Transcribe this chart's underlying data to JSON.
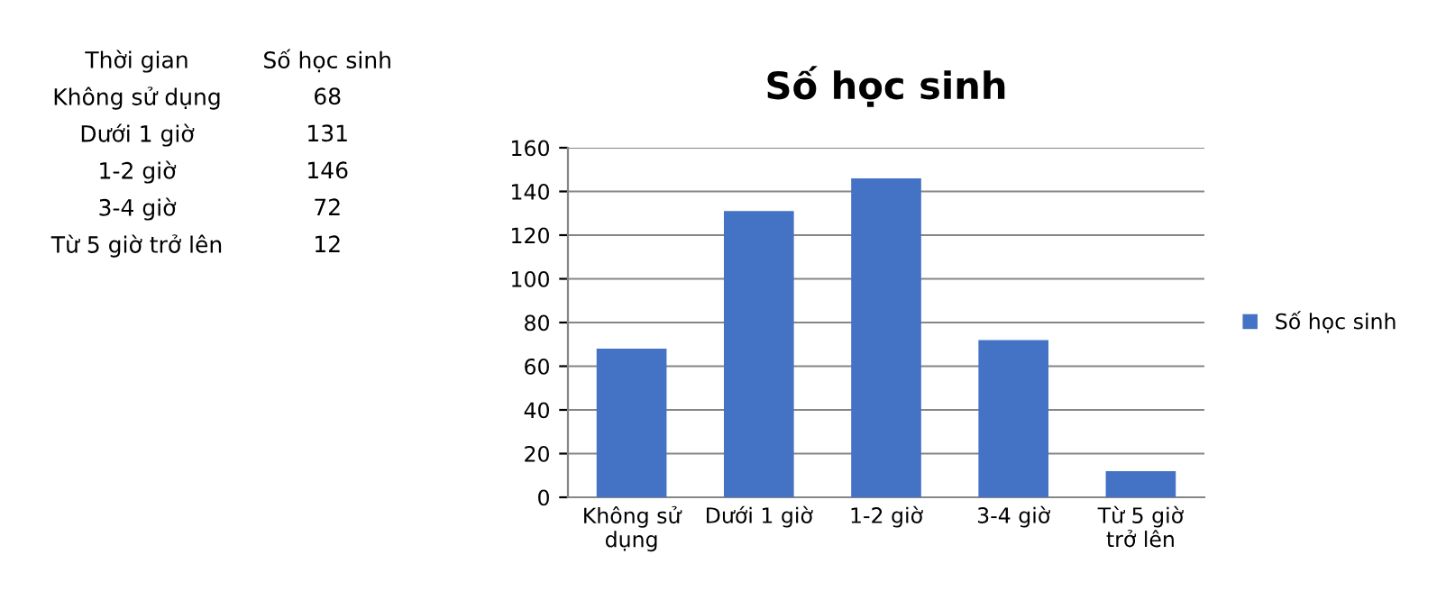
{
  "chart_data": [
    {
      "type": "other",
      "annotations": [
        "Thời gian",
        "Số học sinh",
        "Không sử dụng",
        "68",
        "Dưới 1 giờ",
        "131",
        "1-2 giờ",
        "146",
        "3-4 giờ",
        "72",
        "Từ 5 giờ trở lên",
        "12"
      ]
    },
    {
      "type": "bar",
      "title": "Số học sinh",
      "categories": [
        "Không sử dụng",
        "Dưới 1 giờ",
        "1-2 giờ",
        "3-4 giờ",
        "Từ 5 giờ trở lên"
      ],
      "series": [
        {
          "name": "Số học sinh",
          "color": "#4472c4",
          "values": [
            68,
            131,
            146,
            72,
            12
          ]
        }
      ],
      "ylim": [
        0,
        160
      ],
      "yticks": [
        0,
        20,
        40,
        60,
        80,
        100,
        120,
        140,
        160
      ],
      "grid": "y",
      "legend": "right"
    }
  ]
}
